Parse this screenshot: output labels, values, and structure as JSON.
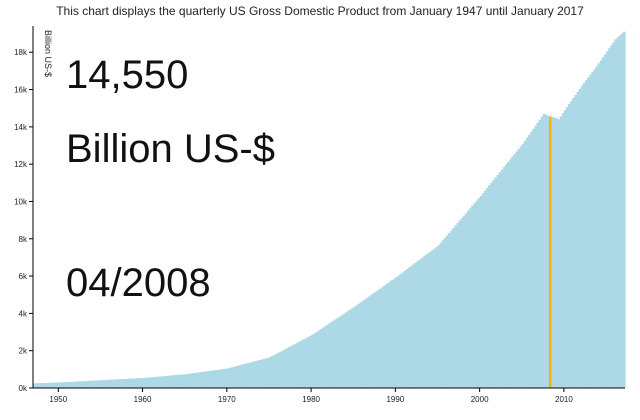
{
  "subtitle": "This chart displays the quarterly US Gross Domestic Product from January 1947 until January 2017",
  "tooltip": {
    "value": "14,550",
    "unit": "Billion US-$",
    "date": "04/2008"
  },
  "colors": {
    "area": "#add8e6",
    "highlight": "#ffb000",
    "axis": "#000000"
  },
  "chart_data": {
    "type": "bar",
    "title": "",
    "ylabel": "Billion US-$",
    "xlabel": "",
    "xlim": [
      1947,
      2017.25
    ],
    "ylim": [
      0,
      19300
    ],
    "x_ticks": [
      1950,
      1960,
      1970,
      1980,
      1990,
      2000,
      2010
    ],
    "x_tick_labels": [
      "1950",
      "1960",
      "1970",
      "1980",
      "1990",
      "2000",
      "2010"
    ],
    "y_ticks": [
      0,
      2000,
      4000,
      6000,
      8000,
      10000,
      12000,
      14000,
      16000,
      18000
    ],
    "y_tick_labels": [
      "0k",
      "2k",
      "4k",
      "6k",
      "8k",
      "10k",
      "12k",
      "14k",
      "16k",
      "18k"
    ],
    "grid": false,
    "highlight_x": 2008.25,
    "series": [
      {
        "x": [
          1947,
          1950,
          1955,
          1960,
          1965,
          1970,
          1975,
          1980,
          1985,
          1990,
          1995,
          2000,
          2005,
          2007.5,
          2008.25,
          2008.75,
          2009.25,
          2010,
          2012,
          2014,
          2016,
          2017
        ],
        "values": [
          245,
          300,
          420,
          540,
          740,
          1050,
          1650,
          2850,
          4350,
          5950,
          7650,
          10300,
          13100,
          14700,
          14550,
          14500,
          14400,
          14900,
          16200,
          17400,
          18700,
          19100
        ]
      }
    ]
  }
}
